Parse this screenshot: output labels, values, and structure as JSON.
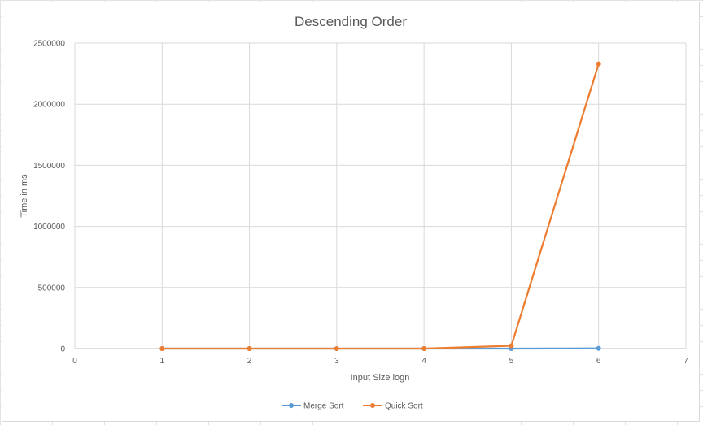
{
  "chart_data": {
    "type": "line",
    "title": "Descending Order",
    "xlabel": "Input Size logn",
    "ylabel": "Time in ms",
    "xlim": [
      0,
      7
    ],
    "ylim": [
      0,
      2500000
    ],
    "x_ticks": [
      "0",
      "1",
      "2",
      "3",
      "4",
      "5",
      "6",
      "7"
    ],
    "y_ticks": [
      "0",
      "500000",
      "1000000",
      "1500000",
      "2000000",
      "2500000"
    ],
    "grid": true,
    "legend_position": "bottom",
    "series": [
      {
        "name": "Merge Sort",
        "color": "#5b9bd5",
        "x": [
          1,
          2,
          3,
          4,
          5,
          6
        ],
        "values": [
          0,
          0,
          1,
          10,
          150,
          2000
        ]
      },
      {
        "name": "Quick Sort",
        "color": "#ed7d31",
        "x": [
          1,
          2,
          3,
          4,
          5,
          6
        ],
        "values": [
          0,
          2,
          25,
          250,
          23000,
          2330000
        ]
      }
    ]
  }
}
